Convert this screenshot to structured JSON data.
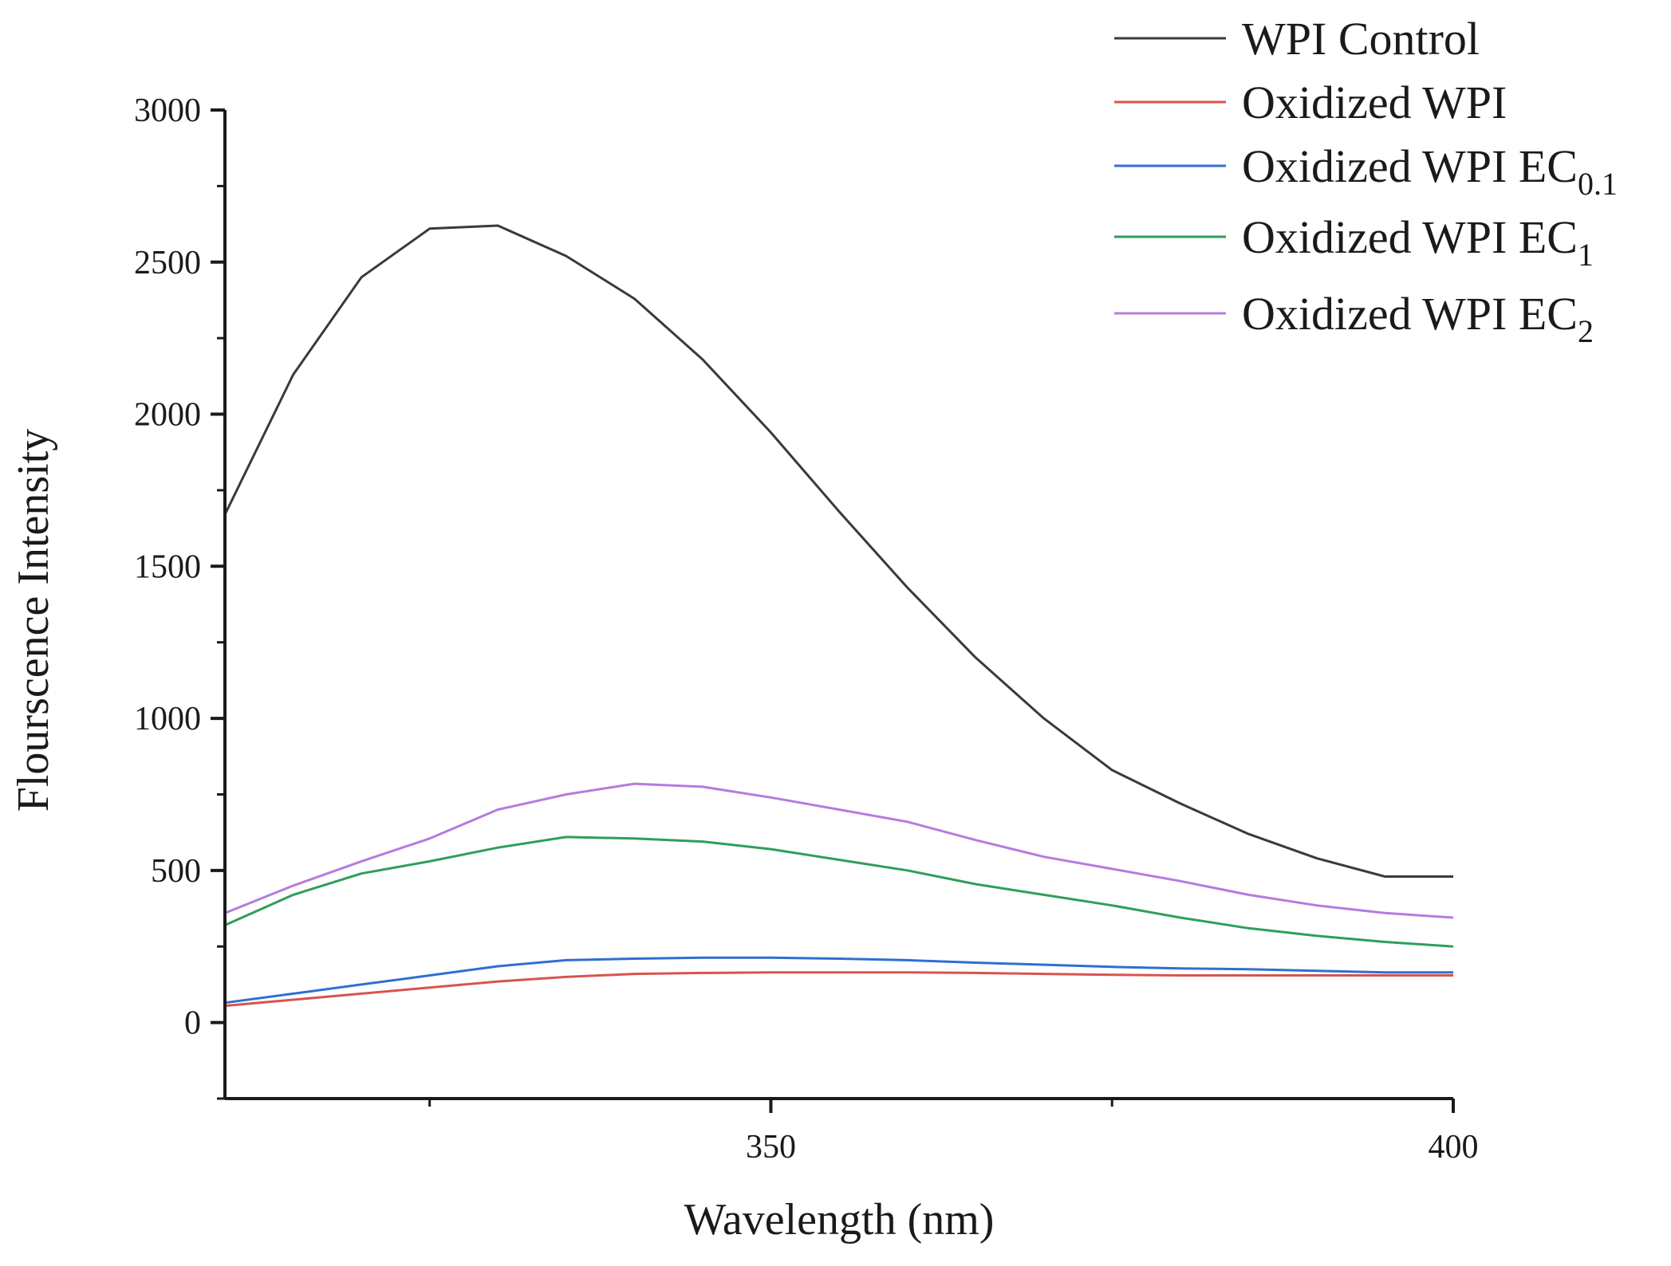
{
  "chart_data": {
    "type": "line",
    "title": "",
    "xlabel": "Wavelength (nm)",
    "ylabel": "Flourscence Intensity",
    "xlim": [
      310,
      400
    ],
    "ylim": [
      -250,
      3000
    ],
    "x_ticks": [
      350,
      400
    ],
    "y_ticks": [
      0,
      500,
      1000,
      1500,
      2000,
      2500,
      3000
    ],
    "grid": false,
    "legend_position": "top-right",
    "x": [
      310,
      315,
      320,
      325,
      330,
      335,
      340,
      345,
      350,
      355,
      360,
      365,
      370,
      375,
      380,
      385,
      390,
      395,
      400
    ],
    "series": [
      {
        "name": "WPI Control",
        "label_main": "WPI Control",
        "label_sub": "",
        "color": "#3a3a3a",
        "values": [
          1670,
          2130,
          2450,
          2610,
          2620,
          2520,
          2380,
          2180,
          1940,
          1680,
          1430,
          1200,
          1000,
          830,
          720,
          620,
          540,
          480,
          480
        ]
      },
      {
        "name": "Oxidized WPI",
        "label_main": "Oxidized WPI",
        "label_sub": "",
        "color": "#d9534f",
        "values": [
          55,
          75,
          95,
          115,
          135,
          150,
          160,
          163,
          165,
          165,
          165,
          163,
          160,
          157,
          155,
          155,
          155,
          155,
          155
        ]
      },
      {
        "name": "Oxidized WPI EC0.1",
        "label_main": "Oxidized WPI EC",
        "label_sub": "0.1",
        "color": "#2f6fd0",
        "values": [
          65,
          95,
          125,
          155,
          185,
          205,
          210,
          213,
          213,
          210,
          205,
          197,
          190,
          183,
          178,
          175,
          170,
          165,
          165
        ]
      },
      {
        "name": "Oxidized WPI EC1",
        "label_main": "Oxidized WPI EC",
        "label_sub": "1",
        "color": "#2f9e5a",
        "values": [
          320,
          420,
          490,
          530,
          575,
          610,
          605,
          595,
          570,
          535,
          500,
          455,
          420,
          385,
          345,
          310,
          285,
          265,
          250
        ]
      },
      {
        "name": "Oxidized WPI EC2",
        "label_main": "Oxidized WPI EC",
        "label_sub": "2",
        "color": "#b57be0",
        "values": [
          360,
          450,
          530,
          605,
          700,
          750,
          785,
          775,
          740,
          700,
          660,
          600,
          545,
          505,
          465,
          420,
          385,
          360,
          345
        ]
      }
    ]
  }
}
